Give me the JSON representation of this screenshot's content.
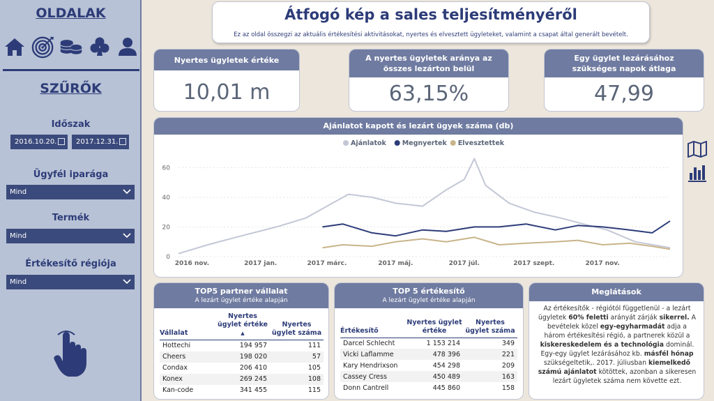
{
  "sidebar": {
    "pages_title": "OLDALAK",
    "nav_icons": [
      "home-icon",
      "target-icon",
      "coins-icon",
      "club-icon",
      "user-icon"
    ],
    "filters_title": "SZŰRŐK",
    "period_label": "Időszak",
    "date_from": "2016.10.20.",
    "date_to": "2017.12.31.",
    "industry_label": "Ügyfél iparága",
    "industry_value": "Mind",
    "product_label": "Termék",
    "product_value": "Mind",
    "region_label": "Értékesítő régiója",
    "region_value": "Mind",
    "bottom_icon": "touch-hand-icon"
  },
  "header": {
    "title": "Átfogó kép a sales teljesítményéről",
    "subtitle": "Ez az oldal összegzi az aktuális értékesítési aktivitásokat, nyertes és elvesztett ügyleteket, valamint a csapat által generált bevételt."
  },
  "kpis": [
    {
      "label": "Nyertes ügyletek értéke",
      "value": "10,01 m"
    },
    {
      "label": "A nyertes ügyletek aránya az összes lezárton belül",
      "value": "63,15%"
    },
    {
      "label": "Egy ügylet lezárásához szükséges napok átlaga",
      "value": "47,99"
    }
  ],
  "chart_section": {
    "title": "Ajánlatot kapott és lezárt ügyek száma (db)"
  },
  "chart_data": {
    "type": "line",
    "title": "Ajánlatot kapott és lezárt ügyek száma (db)",
    "ylim": [
      0,
      70
    ],
    "yticks": [
      0,
      20,
      40,
      60
    ],
    "x_tick_labels": [
      "2016 nov.",
      "2017 jan.",
      "2017 márc.",
      "2017 máj.",
      "2017 júl.",
      "2017 szept.",
      "2017 nov."
    ],
    "x_tick_dates": [
      "2016-11-01",
      "2017-01-01",
      "2017-03-01",
      "2017-05-01",
      "2017-07-01",
      "2017-09-01",
      "2017-11-01"
    ],
    "x_range": [
      "2016-10-20",
      "2017-12-31"
    ],
    "legend_position": "top-center",
    "series": [
      {
        "name": "Ajánlatok",
        "color": "#c3c7d6",
        "x": [
          "2016-10-20",
          "2016-11-15",
          "2016-12-15",
          "2017-01-15",
          "2017-02-10",
          "2017-03-01",
          "2017-03-20",
          "2017-04-10",
          "2017-05-01",
          "2017-05-25",
          "2017-06-15",
          "2017-07-01",
          "2017-07-10",
          "2017-07-20",
          "2017-08-10",
          "2017-09-01",
          "2017-09-25",
          "2017-10-15",
          "2017-11-05",
          "2017-11-30",
          "2017-12-31"
        ],
        "values": [
          2,
          8,
          14,
          20,
          26,
          34,
          42,
          40,
          36,
          34,
          45,
          52,
          66,
          48,
          36,
          30,
          26,
          22,
          18,
          10,
          6
        ]
      },
      {
        "name": "Megnyertek",
        "color": "#2d3c78",
        "x": [
          "2017-02-25",
          "2017-03-15",
          "2017-04-10",
          "2017-05-01",
          "2017-05-25",
          "2017-06-15",
          "2017-07-10",
          "2017-08-01",
          "2017-08-25",
          "2017-09-20",
          "2017-10-10",
          "2017-11-01",
          "2017-11-25",
          "2017-12-15",
          "2017-12-31"
        ],
        "values": [
          20,
          22,
          16,
          14,
          18,
          17,
          20,
          20,
          22,
          18,
          21,
          20,
          18,
          16,
          24
        ]
      },
      {
        "name": "Elvesztettek",
        "color": "#c9b48a",
        "x": [
          "2017-02-25",
          "2017-03-15",
          "2017-04-10",
          "2017-05-01",
          "2017-05-25",
          "2017-06-15",
          "2017-07-10",
          "2017-08-01",
          "2017-08-25",
          "2017-09-20",
          "2017-10-10",
          "2017-11-01",
          "2017-11-25",
          "2017-12-15",
          "2017-12-31"
        ],
        "values": [
          6,
          8,
          7,
          10,
          12,
          10,
          13,
          8,
          9,
          10,
          11,
          8,
          9,
          7,
          5
        ]
      }
    ]
  },
  "partners": {
    "title": "TOP5 partner vállalat",
    "subtitle": "A lezárt ügylet értéke alapján",
    "columns": [
      "Vállalat",
      "Nyertes ügylet értéke",
      "Nyertes ügylet száma"
    ],
    "rows": [
      [
        "Hottechi",
        "194 957",
        "111"
      ],
      [
        "Cheers",
        "198 020",
        "57"
      ],
      [
        "Condax",
        "206 410",
        "105"
      ],
      [
        "Konex",
        "269 245",
        "108"
      ],
      [
        "Kan-code",
        "341 455",
        "115"
      ]
    ]
  },
  "sellers": {
    "title": "TOP 5 értékesítő",
    "subtitle": "A lezárt ügylet értéke alapján",
    "columns": [
      "Értékesítő",
      "Nyertes ügylet értéke",
      "Nyertes ügylet száma"
    ],
    "rows": [
      [
        "Darcel Schlecht",
        "1 153 214",
        "349"
      ],
      [
        "Vicki Laflamme",
        "478 396",
        "221"
      ],
      [
        "Kary Hendrixson",
        "454 298",
        "209"
      ],
      [
        "Cassey Cress",
        "450 489",
        "163"
      ],
      [
        "Donn Cantrell",
        "445 860",
        "158"
      ]
    ]
  },
  "insights": {
    "title": "Meglátások"
  },
  "right_icons": [
    "map-icon",
    "bar-chart-icon"
  ],
  "colors": {
    "accent": "#2d3c78",
    "header": "#6f7ba0",
    "sidebar": "#b8c2d6",
    "background": "#ece6dc"
  }
}
